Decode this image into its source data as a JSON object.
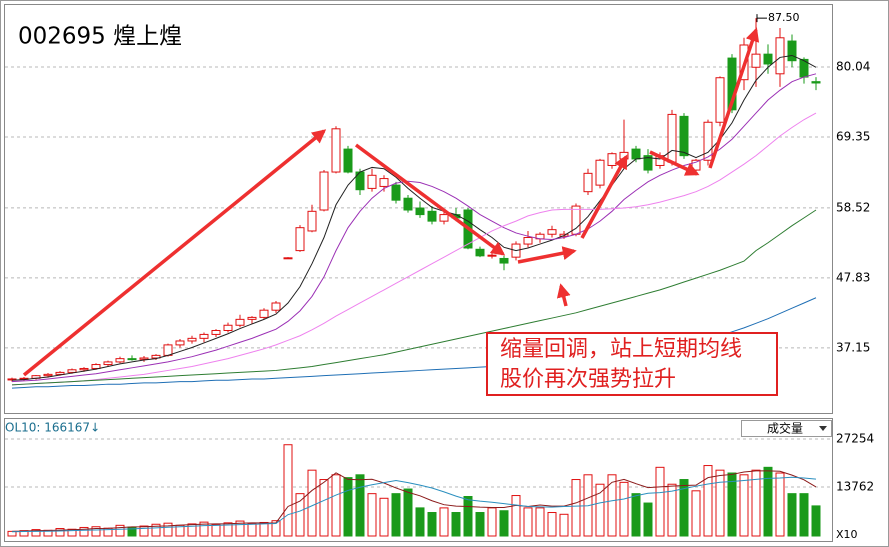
{
  "chart_data": [
    {
      "type": "candlestick",
      "title": "002695 煌上煌",
      "open": [
        32.3,
        32.4,
        32.5,
        32.9,
        33.1,
        33.4,
        33.8,
        34.0,
        34.6,
        35.0,
        35.5,
        35.4,
        35.6,
        36.0,
        37.6,
        38.2,
        38.6,
        39.2,
        39.8,
        40.6,
        41.5,
        41.8,
        42.9,
        50.9,
        52.0,
        55.0,
        58.2,
        64.0,
        67.5,
        64.0,
        61.5,
        61.8,
        62.0,
        60.0,
        58.5,
        58.0,
        56.5,
        57.5,
        58.2,
        52.2,
        51.2,
        50.8,
        51.0,
        53.0,
        53.8,
        54.5,
        54.2,
        54.5,
        61.0,
        62.0,
        65.0,
        66.0,
        67.5,
        66.5,
        65.0,
        65.5,
        72.5,
        64.3,
        65.8,
        71.6,
        81.4,
        78.1,
        80.0,
        82.0,
        79.0,
        84.0,
        81.2,
        77.8
      ],
      "high": [
        32.6,
        32.7,
        33.0,
        33.3,
        33.6,
        34.0,
        34.2,
        34.8,
        35.2,
        35.8,
        36.0,
        35.9,
        36.2,
        37.8,
        38.5,
        39.0,
        39.5,
        40.0,
        41.0,
        42.2,
        42.0,
        43.2,
        44.3,
        51.0,
        55.9,
        59.0,
        64.3,
        71.0,
        68.0,
        64.5,
        64.5,
        63.5,
        62.5,
        60.5,
        59.5,
        58.8,
        58.0,
        58.5,
        58.5,
        52.6,
        51.7,
        51.2,
        53.4,
        55.0,
        54.8,
        55.8,
        55.0,
        59.2,
        64.5,
        66.0,
        67.0,
        72.0,
        68.0,
        67.5,
        67.0,
        73.5,
        73.0,
        66.0,
        72.0,
        78.6,
        82.0,
        84.5,
        87.5,
        83.5,
        86.0,
        85.0,
        81.5,
        78.5
      ],
      "low": [
        32.0,
        32.1,
        32.3,
        32.6,
        32.9,
        33.2,
        33.5,
        33.8,
        34.3,
        34.8,
        35.2,
        35.0,
        35.3,
        35.8,
        37.2,
        37.8,
        38.0,
        38.8,
        39.5,
        40.3,
        40.8,
        41.5,
        42.5,
        50.8,
        51.8,
        54.8,
        58.0,
        63.8,
        63.8,
        60.5,
        61.0,
        61.0,
        59.2,
        57.8,
        57.0,
        56.0,
        56.0,
        56.5,
        52.2,
        51.0,
        50.8,
        49.0,
        50.5,
        52.5,
        53.2,
        54.0,
        53.8,
        54.2,
        60.5,
        61.5,
        64.5,
        65.5,
        65.5,
        63.8,
        64.5,
        65.0,
        66.0,
        63.8,
        65.0,
        71.0,
        73.0,
        76.5,
        77.0,
        79.0,
        77.0,
        80.0,
        77.5,
        76.5
      ],
      "close": [
        32.4,
        32.5,
        32.9,
        33.1,
        33.4,
        33.8,
        34.0,
        34.6,
        35.0,
        35.5,
        35.4,
        35.6,
        36.0,
        37.6,
        38.2,
        38.6,
        39.2,
        39.8,
        40.6,
        41.5,
        41.8,
        42.9,
        44.0,
        50.9,
        55.5,
        58.0,
        64.0,
        70.6,
        64.0,
        61.3,
        63.5,
        63.0,
        59.7,
        58.2,
        57.5,
        56.5,
        57.5,
        57.0,
        52.4,
        51.2,
        51.3,
        50.1,
        53.0,
        54.0,
        54.5,
        55.2,
        54.5,
        58.8,
        63.8,
        65.8,
        66.8,
        67.0,
        66.0,
        64.3,
        66.5,
        72.8,
        66.5,
        65.8,
        71.6,
        78.4,
        73.5,
        83.4,
        82.0,
        80.5,
        84.5,
        81.0,
        78.5,
        77.6
      ],
      "up_color": "#e01010",
      "down_color": "#1a9a1a",
      "series": [
        {
          "color": "#222222",
          "values": [
            32.2,
            32.3,
            32.5,
            32.7,
            33.0,
            33.3,
            33.6,
            33.9,
            34.3,
            34.7,
            35.0,
            35.3,
            35.5,
            36.0,
            36.6,
            37.2,
            37.9,
            38.6,
            39.3,
            40.1,
            40.8,
            41.5,
            42.3,
            44.0,
            46.5,
            50.0,
            54.0,
            59.0,
            62.0,
            64.0,
            64.7,
            64.5,
            63.2,
            61.5,
            60.0,
            58.6,
            58.0,
            57.5,
            56.5,
            55.2,
            54.0,
            52.5,
            52.0,
            52.4,
            53.0,
            53.6,
            54.3,
            55.4,
            57.2,
            59.6,
            62.0,
            64.5,
            66.0,
            66.2,
            66.0,
            67.3,
            67.0,
            66.2,
            67.0,
            69.0,
            71.5,
            75.0,
            78.0,
            80.0,
            81.5,
            81.8,
            81.0,
            80.0
          ]
        },
        {
          "color": "#9b30b5",
          "values": [
            32.0,
            32.1,
            32.2,
            32.4,
            32.6,
            32.8,
            33.0,
            33.2,
            33.5,
            33.8,
            34.1,
            34.4,
            34.7,
            35.0,
            35.4,
            35.8,
            36.3,
            36.8,
            37.4,
            38.0,
            38.6,
            39.3,
            40.0,
            41.2,
            42.8,
            45.0,
            48.0,
            52.0,
            55.5,
            58.0,
            60.0,
            61.5,
            62.3,
            62.6,
            62.4,
            61.8,
            61.0,
            60.0,
            58.8,
            57.5,
            56.5,
            55.5,
            54.7,
            54.2,
            53.8,
            53.7,
            54.0,
            54.5,
            55.3,
            56.5,
            58.0,
            59.8,
            61.2,
            62.5,
            63.5,
            64.3,
            65.0,
            65.5,
            66.3,
            67.5,
            69.0,
            71.0,
            73.0,
            75.0,
            76.5,
            77.8,
            78.5,
            79.0
          ]
        },
        {
          "color": "#ee82ee",
          "values": [
            31.5,
            31.6,
            31.7,
            31.8,
            31.9,
            32.0,
            32.1,
            32.3,
            32.5,
            32.7,
            32.9,
            33.1,
            33.4,
            33.7,
            34.0,
            34.3,
            34.7,
            35.1,
            35.5,
            36.0,
            36.5,
            37.0,
            37.6,
            38.3,
            39.0,
            39.9,
            40.9,
            42.0,
            43.0,
            44.0,
            45.0,
            46.0,
            47.0,
            48.0,
            49.0,
            50.0,
            51.0,
            52.0,
            53.0,
            54.0,
            55.0,
            55.8,
            56.5,
            57.3,
            57.8,
            58.2,
            58.3,
            58.3,
            58.3,
            58.3,
            58.4,
            58.5,
            58.7,
            59.0,
            59.4,
            59.9,
            60.4,
            61.0,
            61.8,
            62.8,
            64.0,
            65.2,
            66.5,
            68.0,
            69.5,
            70.8,
            72.0,
            73.0
          ]
        },
        {
          "color": "#2e7d32",
          "values": [
            31.5,
            31.6,
            31.7,
            31.8,
            31.9,
            32.0,
            32.1,
            32.2,
            32.3,
            32.4,
            32.5,
            32.6,
            32.7,
            32.8,
            32.9,
            33.0,
            33.1,
            33.2,
            33.3,
            33.4,
            33.5,
            33.6,
            33.7,
            33.9,
            34.1,
            34.3,
            34.6,
            34.9,
            35.2,
            35.5,
            35.8,
            36.1,
            36.5,
            36.9,
            37.3,
            37.7,
            38.1,
            38.5,
            38.9,
            39.3,
            39.7,
            40.1,
            40.5,
            40.9,
            41.3,
            41.7,
            42.1,
            42.5,
            43.0,
            43.5,
            44.0,
            44.5,
            45.0,
            45.5,
            46.0,
            46.6,
            47.2,
            47.8,
            48.4,
            49.0,
            49.7,
            50.4,
            52.0,
            53.2,
            54.5,
            55.8,
            57.0,
            58.2
          ]
        },
        {
          "color": "#1f6fb5",
          "values": [
            31.0,
            31.1,
            31.2,
            31.2,
            31.3,
            31.4,
            31.4,
            31.5,
            31.6,
            31.6,
            31.7,
            31.8,
            31.8,
            31.9,
            32.0,
            32.0,
            32.1,
            32.2,
            32.2,
            32.3,
            32.4,
            32.4,
            32.5,
            32.6,
            32.7,
            32.8,
            32.9,
            33.0,
            33.1,
            33.2,
            33.3,
            33.4,
            33.5,
            33.6,
            33.7,
            33.8,
            33.9,
            34.0,
            34.1,
            34.2,
            34.3,
            34.4,
            34.5,
            34.6,
            34.7,
            34.9,
            35.1,
            35.3,
            35.5,
            35.7,
            35.9,
            36.1,
            36.4,
            36.7,
            37.0,
            37.3,
            37.6,
            38.0,
            38.5,
            39.0,
            39.6,
            40.2,
            40.9,
            41.6,
            42.4,
            43.2,
            44.0,
            44.8
          ]
        }
      ],
      "ylim": [
        27.2,
        89.66
      ],
      "yticks": [
        37.15,
        47.83,
        58.52,
        69.35,
        80.04
      ],
      "grid": true,
      "annotation": {
        "value": 87.5,
        "label": "87.50"
      },
      "annotation_text": [
        "缩量回调，站上短期均线",
        "股价再次强势拉升"
      ]
    },
    {
      "type": "bar",
      "title": "OL10: 166167↓",
      "values": [
        1300,
        1500,
        1800,
        1600,
        2100,
        1900,
        2400,
        2600,
        2200,
        3000,
        2500,
        2800,
        3300,
        3600,
        3000,
        3400,
        3900,
        3200,
        3700,
        4200,
        3500,
        3800,
        4300,
        25650,
        11900,
        18500,
        15870,
        17200,
        16400,
        17200,
        11900,
        10600,
        11900,
        13200,
        7900,
        6600,
        7900,
        6600,
        11100,
        6600,
        7900,
        7100,
        11370,
        7900,
        7900,
        6600,
        6100,
        15870,
        17200,
        14550,
        17200,
        15080,
        11900,
        9260,
        19300,
        14550,
        15870,
        12700,
        19800,
        18500,
        17700,
        17200,
        18500,
        19300,
        17700,
        11900,
        11900,
        8460
      ],
      "series": [
        {
          "color": "#8b1a1a",
          "values": [
            1300,
            1400,
            1500,
            1550,
            1650,
            1750,
            1900,
            2100,
            2150,
            2350,
            2550,
            2600,
            2750,
            2850,
            3050,
            3200,
            3350,
            3400,
            3450,
            3600,
            3700,
            3650,
            3700,
            8300,
            9800,
            12800,
            15100,
            17750,
            15900,
            15800,
            15950,
            14900,
            13500,
            12300,
            11300,
            9900,
            8800,
            8400,
            8300,
            8100,
            8000,
            8000,
            8600,
            8300,
            8700,
            8400,
            8400,
            9300,
            10700,
            12100,
            15100,
            15900,
            14700,
            13600,
            13800,
            14000,
            14200,
            14300,
            16400,
            17000,
            17300,
            18000,
            18300,
            18300,
            18200,
            17100,
            15800,
            13800
          ]
        },
        {
          "color": "#2a8fbf",
          "values": [
            1200,
            1250,
            1300,
            1350,
            1400,
            1500,
            1600,
            1700,
            1800,
            1900,
            2000,
            2150,
            2300,
            2450,
            2600,
            2750,
            2900,
            3000,
            3100,
            3200,
            3300,
            3400,
            3500,
            6000,
            7000,
            8500,
            10000,
            11500,
            12800,
            13700,
            14400,
            15000,
            15600,
            15000,
            14300,
            13500,
            12400,
            11200,
            10200,
            9800,
            9500,
            9100,
            8700,
            8300,
            8200,
            8100,
            8300,
            8400,
            8500,
            9300,
            9900,
            10400,
            11300,
            12000,
            12200,
            12600,
            13300,
            14000,
            14600,
            15100,
            15300,
            15600,
            15900,
            16200,
            16300,
            16500,
            16300,
            16000
          ]
        }
      ],
      "up_color": "#e01010",
      "down_color": "#1a9a1a",
      "ylim": [
        0,
        32600
      ],
      "yticks": [
        13762,
        27254
      ],
      "grid": true,
      "selector": "成交量",
      "scale_label": "X10"
    }
  ]
}
